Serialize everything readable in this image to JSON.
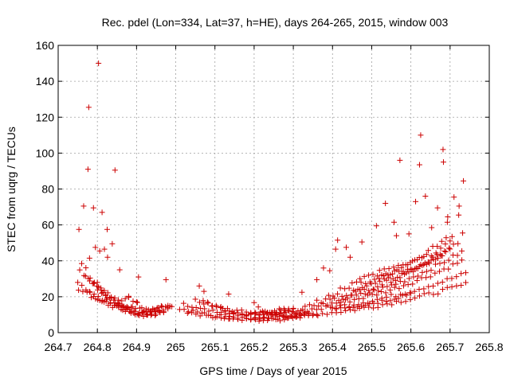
{
  "chart_data": {
    "type": "scatter",
    "title": "Rec. pdel (Lon=334, Lat=37, h=HE), days 264-265, 2015, window 003",
    "xlabel": "GPS time / Days of year 2015",
    "ylabel": "STEC from uqrg / TECUs",
    "xlim": [
      264.7,
      265.8
    ],
    "ylim": [
      0,
      160
    ],
    "x_ticks": [
      264.7,
      264.8,
      264.9,
      265.0,
      265.1,
      265.2,
      265.3,
      265.4,
      265.5,
      265.6,
      265.7,
      265.8
    ],
    "x_tick_labels": [
      "264.7",
      "264.8",
      "264.9",
      "265",
      "265.1",
      "265.2",
      "265.3",
      "265.4",
      "265.5",
      "265.6",
      "265.7",
      "265.8"
    ],
    "y_ticks": [
      0,
      20,
      40,
      60,
      80,
      100,
      120,
      140,
      160
    ],
    "y_tick_labels": [
      "0",
      "20",
      "40",
      "60",
      "80",
      "100",
      "120",
      "140",
      "160"
    ],
    "grid": true,
    "marker": "+",
    "marker_color": "#cc0000",
    "outliers": [
      [
        264.753,
        57.5
      ],
      [
        264.765,
        70.5
      ],
      [
        264.778,
        125.5
      ],
      [
        264.776,
        91.0
      ],
      [
        264.79,
        69.5
      ],
      [
        264.803,
        150.0
      ],
      [
        264.812,
        67.0
      ],
      [
        264.825,
        57.5
      ],
      [
        264.845,
        90.5
      ],
      [
        264.838,
        49.5
      ],
      [
        264.78,
        41.5
      ],
      [
        264.795,
        47.5
      ],
      [
        264.806,
        45.5
      ],
      [
        264.818,
        46.5
      ],
      [
        264.826,
        42.0
      ],
      [
        264.857,
        35.0
      ],
      [
        264.905,
        31.0
      ],
      [
        264.975,
        29.5
      ],
      [
        265.06,
        26.0
      ],
      [
        265.072,
        23.0
      ],
      [
        265.135,
        21.5
      ],
      [
        265.322,
        22.5
      ],
      [
        265.36,
        29.5
      ],
      [
        265.377,
        36.0
      ],
      [
        265.393,
        34.5
      ],
      [
        265.408,
        46.5
      ],
      [
        265.413,
        51.5
      ],
      [
        265.435,
        47.5
      ],
      [
        265.445,
        42.0
      ],
      [
        265.475,
        50.5
      ],
      [
        265.512,
        59.5
      ],
      [
        265.535,
        72.0
      ],
      [
        265.557,
        61.5
      ],
      [
        265.563,
        54.0
      ],
      [
        265.572,
        96.0
      ],
      [
        265.595,
        55.0
      ],
      [
        265.612,
        73.0
      ],
      [
        265.625,
        110.0
      ],
      [
        265.622,
        93.5
      ],
      [
        265.637,
        76.0
      ],
      [
        265.653,
        58.5
      ],
      [
        265.668,
        69.5
      ],
      [
        265.682,
        102.0
      ],
      [
        265.683,
        95.0
      ],
      [
        265.694,
        64.5
      ],
      [
        265.71,
        75.5
      ],
      [
        265.723,
        70.5
      ],
      [
        265.722,
        65.5
      ],
      [
        265.734,
        84.5
      ],
      [
        265.732,
        55.5
      ],
      [
        265.693,
        61.5
      ],
      [
        265.705,
        53.5
      ]
    ],
    "arcs": [
      {
        "start": 264.75,
        "end": 264.99,
        "v0": 28.0,
        "vmin": 11.0,
        "vmid": 264.93,
        "count": 24
      },
      {
        "start": 264.752,
        "end": 264.98,
        "v0": 24.5,
        "vmin": 10.0,
        "vmid": 264.94,
        "count": 22
      },
      {
        "start": 264.755,
        "end": 264.985,
        "v0": 35.0,
        "vmin": 12.5,
        "vmid": 264.92,
        "count": 22
      },
      {
        "start": 264.77,
        "end": 264.965,
        "v0": 32.0,
        "vmin": 11.5,
        "vmid": 264.91,
        "count": 20
      },
      {
        "start": 264.76,
        "end": 264.9,
        "v0": 39.0,
        "vmin": 14.0,
        "vmid": 264.88,
        "count": 14
      },
      {
        "start": 264.78,
        "end": 264.96,
        "v0": 22.0,
        "vmin": 9.5,
        "vmid": 264.95,
        "count": 18
      },
      {
        "start": 264.8,
        "end": 264.88,
        "v0": 28.0,
        "vmin": 18.0,
        "vmid": 264.87,
        "count": 10
      },
      {
        "start": 264.88,
        "end": 264.98,
        "v0": 21.0,
        "vmin": 12.0,
        "vmid": 264.95,
        "count": 10
      },
      {
        "start": 265.01,
        "end": 265.34,
        "v0": 13.0,
        "vmin": 7.5,
        "vmid": 265.22,
        "count": 30
      },
      {
        "start": 265.02,
        "end": 265.33,
        "v0": 15.5,
        "vmin": 9.5,
        "vmid": 265.18,
        "count": 30
      },
      {
        "start": 265.03,
        "end": 265.32,
        "v0": 11.5,
        "vmin": 7.0,
        "vmid": 265.25,
        "count": 28
      },
      {
        "start": 265.05,
        "end": 265.3,
        "v0": 19.0,
        "vmin": 10.5,
        "vmid": 265.2,
        "count": 24
      },
      {
        "start": 265.07,
        "end": 265.28,
        "v0": 17.0,
        "vmin": 8.5,
        "vmid": 265.23,
        "count": 20
      },
      {
        "start": 265.12,
        "end": 265.3,
        "v0": 14.0,
        "vmin": 11.0,
        "vmid": 265.2,
        "count": 16
      },
      {
        "start": 265.2,
        "end": 265.36,
        "v0": 16.5,
        "vmin": 8.0,
        "vmid": 265.28,
        "count": 16
      },
      {
        "start": 265.28,
        "end": 265.74,
        "v0": 9.5,
        "vmin": 9.5,
        "vmid": 265.28,
        "v1": 27.0,
        "count": 40
      },
      {
        "start": 265.3,
        "end": 265.74,
        "v0": 12.5,
        "vmin": 12.5,
        "vmid": 265.3,
        "v1": 33.0,
        "count": 38
      },
      {
        "start": 265.33,
        "end": 265.73,
        "v0": 15.0,
        "vmin": 15.0,
        "vmid": 265.33,
        "v1": 40.0,
        "count": 36
      },
      {
        "start": 265.36,
        "end": 265.73,
        "v0": 17.5,
        "vmin": 17.5,
        "vmid": 265.36,
        "v1": 45.0,
        "count": 34
      },
      {
        "start": 265.39,
        "end": 265.72,
        "v0": 20.5,
        "vmin": 20.5,
        "vmid": 265.39,
        "v1": 50.0,
        "count": 30
      },
      {
        "start": 265.42,
        "end": 265.7,
        "v0": 24.0,
        "vmin": 24.0,
        "vmid": 265.42,
        "v1": 47.0,
        "count": 26
      },
      {
        "start": 265.45,
        "end": 265.69,
        "v0": 27.0,
        "vmin": 27.0,
        "vmid": 265.45,
        "v1": 53.0,
        "count": 22
      },
      {
        "start": 265.4,
        "end": 265.6,
        "v0": 14.0,
        "vmin": 14.0,
        "vmid": 265.4,
        "v1": 22.0,
        "count": 20
      },
      {
        "start": 265.47,
        "end": 265.68,
        "v0": 31.0,
        "vmin": 31.0,
        "vmid": 265.47,
        "v1": 42.0,
        "count": 20
      },
      {
        "start": 265.52,
        "end": 265.7,
        "v0": 35.0,
        "vmin": 35.0,
        "vmid": 265.52,
        "v1": 50.0,
        "count": 16
      }
    ]
  }
}
